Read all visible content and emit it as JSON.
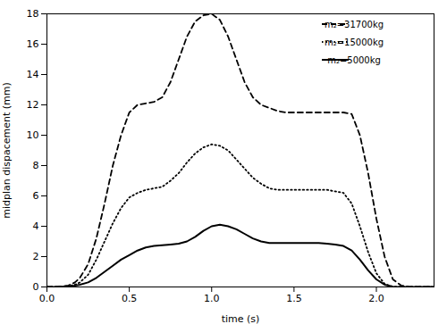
{
  "chart_data": {
    "type": "line",
    "xlabel": "time (s)",
    "ylabel": "midplan dispacement (mm)",
    "xlim": [
      0.0,
      2.35
    ],
    "ylim": [
      0,
      18
    ],
    "xticks": [
      {
        "value": 0.0,
        "label": "0.0"
      },
      0.5,
      {
        "value": 1.0,
        "label": "1.0"
      },
      1.5,
      {
        "value": 2.0,
        "label": "2.0"
      }
    ],
    "yticks": [
      0,
      2,
      4,
      6,
      8,
      10,
      12,
      14,
      16,
      18
    ],
    "grid": false,
    "legend": "upper right",
    "series": [
      {
        "name": "m₂=31700kg",
        "color": "black",
        "line_style": "dashed",
        "x": [
          0.0,
          0.05,
          0.1,
          0.13,
          0.17,
          0.2,
          0.25,
          0.3,
          0.35,
          0.4,
          0.45,
          0.5,
          0.55,
          0.6,
          0.65,
          0.7,
          0.75,
          0.8,
          0.85,
          0.9,
          0.95,
          1.0,
          1.05,
          1.1,
          1.15,
          1.2,
          1.25,
          1.3,
          1.35,
          1.4,
          1.45,
          1.5,
          1.55,
          1.6,
          1.65,
          1.7,
          1.75,
          1.8,
          1.85,
          1.9,
          1.95,
          2.0,
          2.05,
          2.1,
          2.15,
          2.2,
          2.25,
          2.3,
          2.35
        ],
        "values": [
          0.0,
          0.0,
          0.05,
          0.1,
          0.3,
          0.6,
          1.5,
          3.2,
          5.5,
          8.0,
          10.0,
          11.5,
          12.0,
          12.1,
          12.2,
          12.5,
          13.5,
          15.0,
          16.5,
          17.5,
          17.9,
          18.0,
          17.6,
          16.5,
          15.0,
          13.5,
          12.5,
          12.0,
          11.8,
          11.6,
          11.5,
          11.5,
          11.5,
          11.5,
          11.5,
          11.5,
          11.5,
          11.5,
          11.4,
          10.0,
          7.5,
          4.5,
          2.0,
          0.5,
          0.1,
          0.0,
          0.0,
          0.0,
          0.0
        ]
      },
      {
        "name": "m₂=15000kg",
        "color": "black",
        "line_style": "dotted",
        "x": [
          0.0,
          0.05,
          0.1,
          0.13,
          0.17,
          0.2,
          0.25,
          0.3,
          0.35,
          0.4,
          0.45,
          0.5,
          0.55,
          0.6,
          0.65,
          0.7,
          0.75,
          0.8,
          0.85,
          0.9,
          0.95,
          1.0,
          1.05,
          1.1,
          1.15,
          1.2,
          1.25,
          1.3,
          1.35,
          1.4,
          1.45,
          1.5,
          1.55,
          1.6,
          1.65,
          1.7,
          1.75,
          1.8,
          1.85,
          1.9,
          1.95,
          2.0,
          2.05,
          2.1,
          2.15,
          2.2,
          2.25,
          2.3,
          2.35
        ],
        "values": [
          0.0,
          0.0,
          0.02,
          0.05,
          0.15,
          0.3,
          0.8,
          1.8,
          3.0,
          4.2,
          5.2,
          5.9,
          6.2,
          6.4,
          6.5,
          6.6,
          7.0,
          7.5,
          8.2,
          8.8,
          9.2,
          9.4,
          9.3,
          9.0,
          8.4,
          7.8,
          7.2,
          6.8,
          6.5,
          6.4,
          6.4,
          6.4,
          6.4,
          6.4,
          6.4,
          6.4,
          6.3,
          6.2,
          5.5,
          4.0,
          2.3,
          0.9,
          0.2,
          0.02,
          0.0,
          0.0,
          0.0,
          0.0,
          0.0
        ]
      },
      {
        "name": "m₂=5000kg",
        "color": "black",
        "line_style": "solid",
        "x": [
          0.0,
          0.05,
          0.1,
          0.15,
          0.2,
          0.25,
          0.3,
          0.35,
          0.4,
          0.45,
          0.5,
          0.55,
          0.6,
          0.65,
          0.7,
          0.75,
          0.8,
          0.85,
          0.9,
          0.95,
          1.0,
          1.05,
          1.1,
          1.15,
          1.2,
          1.25,
          1.3,
          1.35,
          1.4,
          1.45,
          1.5,
          1.55,
          1.6,
          1.65,
          1.7,
          1.75,
          1.8,
          1.85,
          1.9,
          1.95,
          2.0,
          2.05,
          2.1,
          2.15,
          2.2,
          2.25,
          2.3,
          2.35
        ],
        "values": [
          0.0,
          0.0,
          0.02,
          0.05,
          0.15,
          0.3,
          0.6,
          1.0,
          1.4,
          1.8,
          2.1,
          2.4,
          2.6,
          2.7,
          2.75,
          2.8,
          2.85,
          3.0,
          3.3,
          3.7,
          4.0,
          4.1,
          4.0,
          3.8,
          3.5,
          3.2,
          3.0,
          2.9,
          2.9,
          2.9,
          2.9,
          2.9,
          2.9,
          2.9,
          2.85,
          2.8,
          2.7,
          2.4,
          1.8,
          1.1,
          0.5,
          0.15,
          0.02,
          0.0,
          0.0,
          0.0,
          0.0,
          0.0
        ]
      }
    ]
  }
}
